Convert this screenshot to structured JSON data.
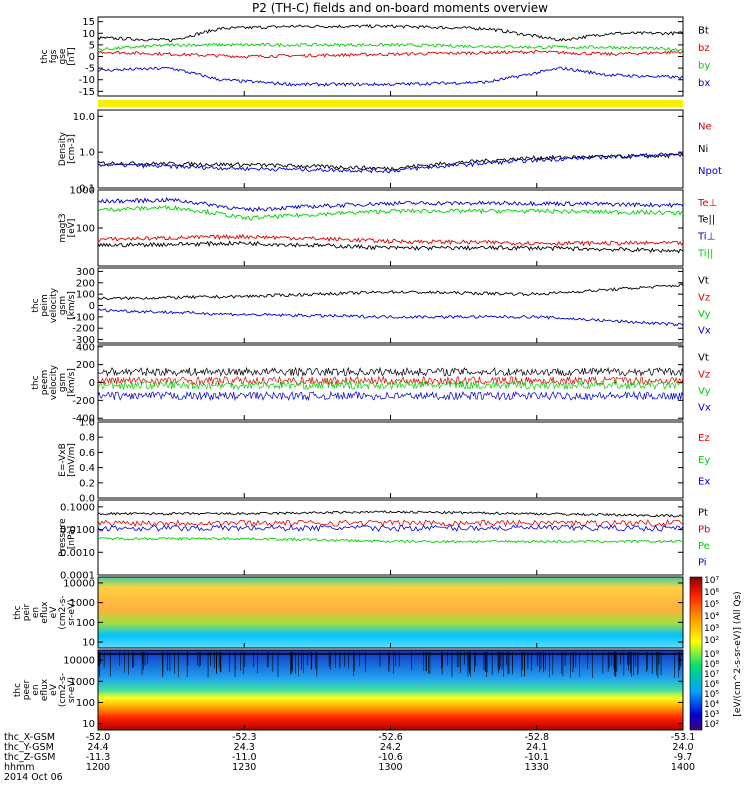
{
  "title": "P2 (TH-C) fields and on-board moments overview",
  "colors": {
    "black": "#000000",
    "red": "#e00000",
    "green": "#00d000",
    "blue": "#0000d0",
    "flag": "#f4f000"
  },
  "panels": [
    {
      "ylabel": [
        "thc",
        "fgs",
        "gse",
        "[nT]"
      ],
      "scale": "linear",
      "ylim": [
        -17,
        17
      ],
      "ticks": [
        "15",
        "10",
        "5",
        "0",
        "-5",
        "-10",
        "-15"
      ],
      "legend": [
        "Bt",
        "bz",
        "by",
        "bx"
      ],
      "legend_colors": [
        "#000000",
        "#e00000",
        "#00d000",
        "#0000d0"
      ]
    },
    {
      "ylabel": [
        "Density",
        "[cm-3]"
      ],
      "scale": "log",
      "ylim": [
        0.1,
        15
      ],
      "ticks": [
        "10.0",
        "1.0",
        "0.1"
      ],
      "legend": [
        "Ne",
        "Ni",
        "Npot"
      ],
      "legend_colors": [
        "#e00000",
        "#000000",
        "#0000d0"
      ]
    },
    {
      "ylabel": [
        "magt3",
        "[eV]"
      ],
      "scale": "log",
      "ylim": [
        10,
        1000
      ],
      "ticks": [
        "1000",
        "100"
      ],
      "legend": [
        "Te⊥",
        "Te||",
        "Ti⊥",
        "Ti||"
      ],
      "legend_colors": [
        "#e00000",
        "#000000",
        "#0000d0",
        "#00d000"
      ]
    },
    {
      "ylabel": [
        "thc",
        "peim",
        "velocity",
        "gsm",
        "[km/s]"
      ],
      "scale": "linear",
      "ylim": [
        -330,
        330
      ],
      "ticks": [
        "300",
        "200",
        "100",
        "0",
        "-100",
        "-200",
        "-300"
      ],
      "legend": [
        "Vt",
        "Vz",
        "Vy",
        "Vx"
      ],
      "legend_colors": [
        "#000000",
        "#e00000",
        "#00d000",
        "#0000d0"
      ]
    },
    {
      "ylabel": [
        "thc",
        "peem",
        "velocity",
        "gsm",
        "[km/s]"
      ],
      "scale": "linear",
      "ylim": [
        -420,
        420
      ],
      "ticks": [
        "400",
        "200",
        "0",
        "-200",
        "-400"
      ],
      "legend": [
        "Vt",
        "Vz",
        "Vy",
        "Vx"
      ],
      "legend_colors": [
        "#000000",
        "#e00000",
        "#00d000",
        "#0000d0"
      ]
    },
    {
      "ylabel": [
        "E=-VxB",
        "[mV/m]"
      ],
      "scale": "linear",
      "ylim": [
        0,
        1
      ],
      "ticks": [
        "1.0",
        "0.8",
        "0.6",
        "0.4",
        "0.2",
        "0.0"
      ],
      "legend": [
        "Ez",
        "Ey",
        "Ex"
      ],
      "legend_colors": [
        "#e00000",
        "#00d000",
        "#0000d0"
      ]
    },
    {
      "ylabel": [
        "Pressure",
        "[nPa]"
      ],
      "scale": "log",
      "ylim": [
        0.0001,
        0.2
      ],
      "ticks": [
        "0.1000",
        "0.0100",
        "0.0010",
        "0.0001"
      ],
      "legend": [
        "Pt",
        "Pb",
        "Pe",
        "Pi"
      ],
      "legend_colors": [
        "#000000",
        "#e00000",
        "#00d000",
        "#0000d0"
      ]
    },
    {
      "ylabel": [
        "thc",
        "peir",
        "en",
        "eflux",
        "eV",
        "(cm2-s-",
        "sr-eV)"
      ],
      "scale": "log",
      "ylim": [
        5,
        20000
      ],
      "ticks": [
        "10000",
        "1000",
        "100",
        "10"
      ]
    },
    {
      "ylabel": [
        "thc",
        "peer",
        "en",
        "eflux",
        "eV",
        "(cm2-s-",
        "sr-eV)"
      ],
      "scale": "log",
      "ylim": [
        5,
        30000
      ],
      "ticks": [
        "10000",
        "1000",
        "100",
        "10"
      ]
    }
  ],
  "colorbar": {
    "label": "[eV/(cm^2-s-sr-eV)] (All Qs)",
    "ticks_top": [
      "10⁷",
      "10⁶",
      "10⁵",
      "10⁴",
      "10³",
      "10²"
    ],
    "ticks_bottom": [
      "10⁹",
      "10⁸",
      "10⁷",
      "10⁶",
      "10⁵",
      "10⁴",
      "10³",
      "10²"
    ]
  },
  "xaxis": {
    "row_labels": [
      "thc_X-GSM",
      "thc_Y-GSM",
      "thc_Z-GSM",
      "hhmm",
      "2014 Oct 06"
    ],
    "columns": [
      [
        "-52.0",
        "24.4",
        "-11.3",
        "1200"
      ],
      [
        "-52.3",
        "24.3",
        "-11.0",
        "1230"
      ],
      [
        "-52.6",
        "24.2",
        "-10.6",
        "1300"
      ],
      [
        "-52.8",
        "24.1",
        "-10.1",
        "1330"
      ],
      [
        "-53.1",
        "24.0",
        "-9.7",
        "1400"
      ]
    ]
  },
  "chart_data": {
    "type": "line",
    "x_label": "hhmm",
    "x_ticks": [
      "1200",
      "1230",
      "1300",
      "1330",
      "1400"
    ],
    "series": [
      {
        "name": "Bt",
        "panel": 0,
        "x": [
          "1200",
          "1215",
          "1225",
          "1240",
          "1300",
          "1320",
          "1335",
          "1345",
          "1400"
        ],
        "values": [
          8,
          7,
          12,
          13,
          13,
          12,
          7,
          10,
          10
        ]
      },
      {
        "name": "bz",
        "panel": 0,
        "x": [
          "1200",
          "1215",
          "1230",
          "1300",
          "1330",
          "1345",
          "1400"
        ],
        "values": [
          2,
          1,
          0,
          1,
          2,
          1,
          2
        ]
      },
      {
        "name": "by",
        "panel": 0,
        "x": [
          "1200",
          "1215",
          "1230",
          "1300",
          "1330",
          "1345",
          "1400"
        ],
        "values": [
          3,
          5,
          5,
          5,
          4,
          4,
          3
        ]
      },
      {
        "name": "bx",
        "panel": 0,
        "x": [
          "1200",
          "1215",
          "1225",
          "1240",
          "1300",
          "1320",
          "1335",
          "1345",
          "1400"
        ],
        "values": [
          -6,
          -5,
          -10,
          -12,
          -12,
          -11,
          -5,
          -8,
          -9
        ]
      },
      {
        "name": "Ni",
        "panel": 1,
        "x": [
          "1200",
          "1230",
          "1300",
          "1330",
          "1400"
        ],
        "values": [
          0.5,
          0.45,
          0.35,
          0.7,
          0.8
        ]
      },
      {
        "name": "Npot",
        "panel": 1,
        "x": [
          "1200",
          "1230",
          "1300",
          "1330",
          "1400"
        ],
        "values": [
          0.45,
          0.35,
          0.3,
          0.6,
          0.9
        ]
      },
      {
        "name": "Ti⊥",
        "panel": 2,
        "x": [
          "1200",
          "1215",
          "1230",
          "1300",
          "1330",
          "1400"
        ],
        "values": [
          500,
          550,
          300,
          450,
          450,
          400
        ]
      },
      {
        "name": "Ti||",
        "panel": 2,
        "x": [
          "1200",
          "1215",
          "1230",
          "1300",
          "1330",
          "1400"
        ],
        "values": [
          300,
          350,
          180,
          280,
          280,
          250
        ]
      },
      {
        "name": "Te⊥",
        "panel": 2,
        "x": [
          "1200",
          "1230",
          "1300",
          "1330",
          "1400"
        ],
        "values": [
          50,
          60,
          45,
          40,
          40
        ]
      },
      {
        "name": "Te||",
        "panel": 2,
        "x": [
          "1200",
          "1230",
          "1300",
          "1330",
          "1400"
        ],
        "values": [
          35,
          40,
          30,
          30,
          25
        ]
      },
      {
        "name": "Vt",
        "panel": 3,
        "x": [
          "1200",
          "1230",
          "1300",
          "1330",
          "1400"
        ],
        "values": [
          60,
          80,
          120,
          100,
          180
        ]
      },
      {
        "name": "Vx",
        "panel": 3,
        "x": [
          "1200",
          "1230",
          "1300",
          "1330",
          "1400"
        ],
        "values": [
          -40,
          -80,
          -100,
          -100,
          -170
        ]
      },
      {
        "name": "Pt",
        "panel": 6,
        "x": [
          "1200",
          "1230",
          "1300",
          "1330",
          "1400"
        ],
        "values": [
          0.05,
          0.05,
          0.06,
          0.05,
          0.04
        ]
      },
      {
        "name": "Pe",
        "panel": 6,
        "x": [
          "1200",
          "1230",
          "1300",
          "1330",
          "1400"
        ],
        "values": [
          0.004,
          0.004,
          0.003,
          0.003,
          0.003
        ]
      }
    ]
  }
}
